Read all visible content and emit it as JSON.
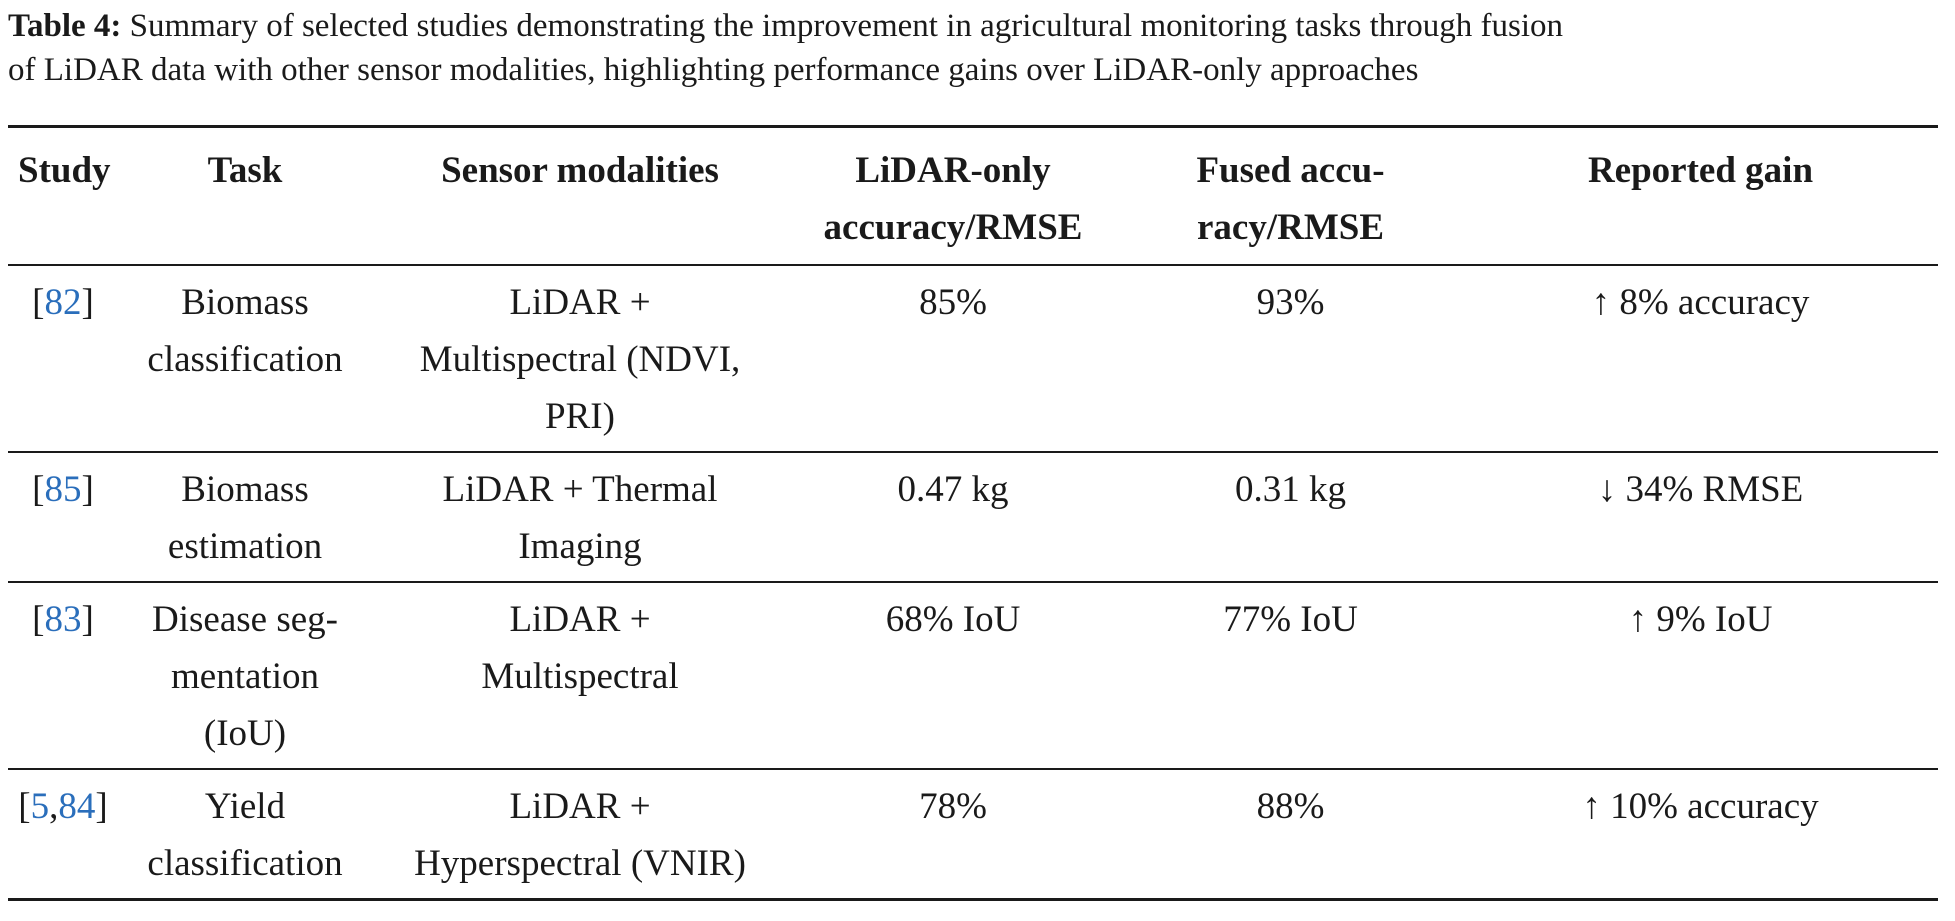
{
  "caption": {
    "label": "Table 4:",
    "line1": "Summary of selected studies demonstrating the improvement in agricultural monitoring tasks through fusion",
    "line2": "of LiDAR data with other sensor modalities, highlighting performance gains over LiDAR-only approaches"
  },
  "table": {
    "headers": {
      "study": "Study",
      "task": "Task",
      "sensor": "Sensor modalities",
      "lidar_line1": "LiDAR-only",
      "lidar_line2": "accuracy/RMSE",
      "fused_line1": "Fused accu-",
      "fused_line2": "racy/RMSE",
      "gain": "Reported gain"
    },
    "rows": [
      {
        "refs": [
          "82"
        ],
        "task": [
          "Biomass",
          "classification"
        ],
        "sensor": [
          "LiDAR +",
          "Multispectral (NDVI,",
          "PRI)"
        ],
        "lidar": "85%",
        "fused": "93%",
        "gain": "↑ 8% accuracy"
      },
      {
        "refs": [
          "85"
        ],
        "task": [
          "Biomass",
          "estimation"
        ],
        "sensor": [
          "LiDAR + Thermal",
          "Imaging"
        ],
        "lidar": "0.47 kg",
        "fused": "0.31 kg",
        "gain": "↓ 34% RMSE"
      },
      {
        "refs": [
          "83"
        ],
        "task": [
          "Disease seg-",
          "mentation",
          "(IoU)"
        ],
        "sensor": [
          "LiDAR +",
          "Multispectral"
        ],
        "lidar": "68% IoU",
        "fused": "77% IoU",
        "gain": "↑ 9% IoU"
      },
      {
        "refs": [
          "5",
          "84"
        ],
        "task": [
          "Yield",
          "classification"
        ],
        "sensor": [
          "LiDAR +",
          "Hyperspectral (VNIR)"
        ],
        "lidar": "78%",
        "fused": "88%",
        "gain": "↑ 10% accuracy"
      }
    ]
  }
}
